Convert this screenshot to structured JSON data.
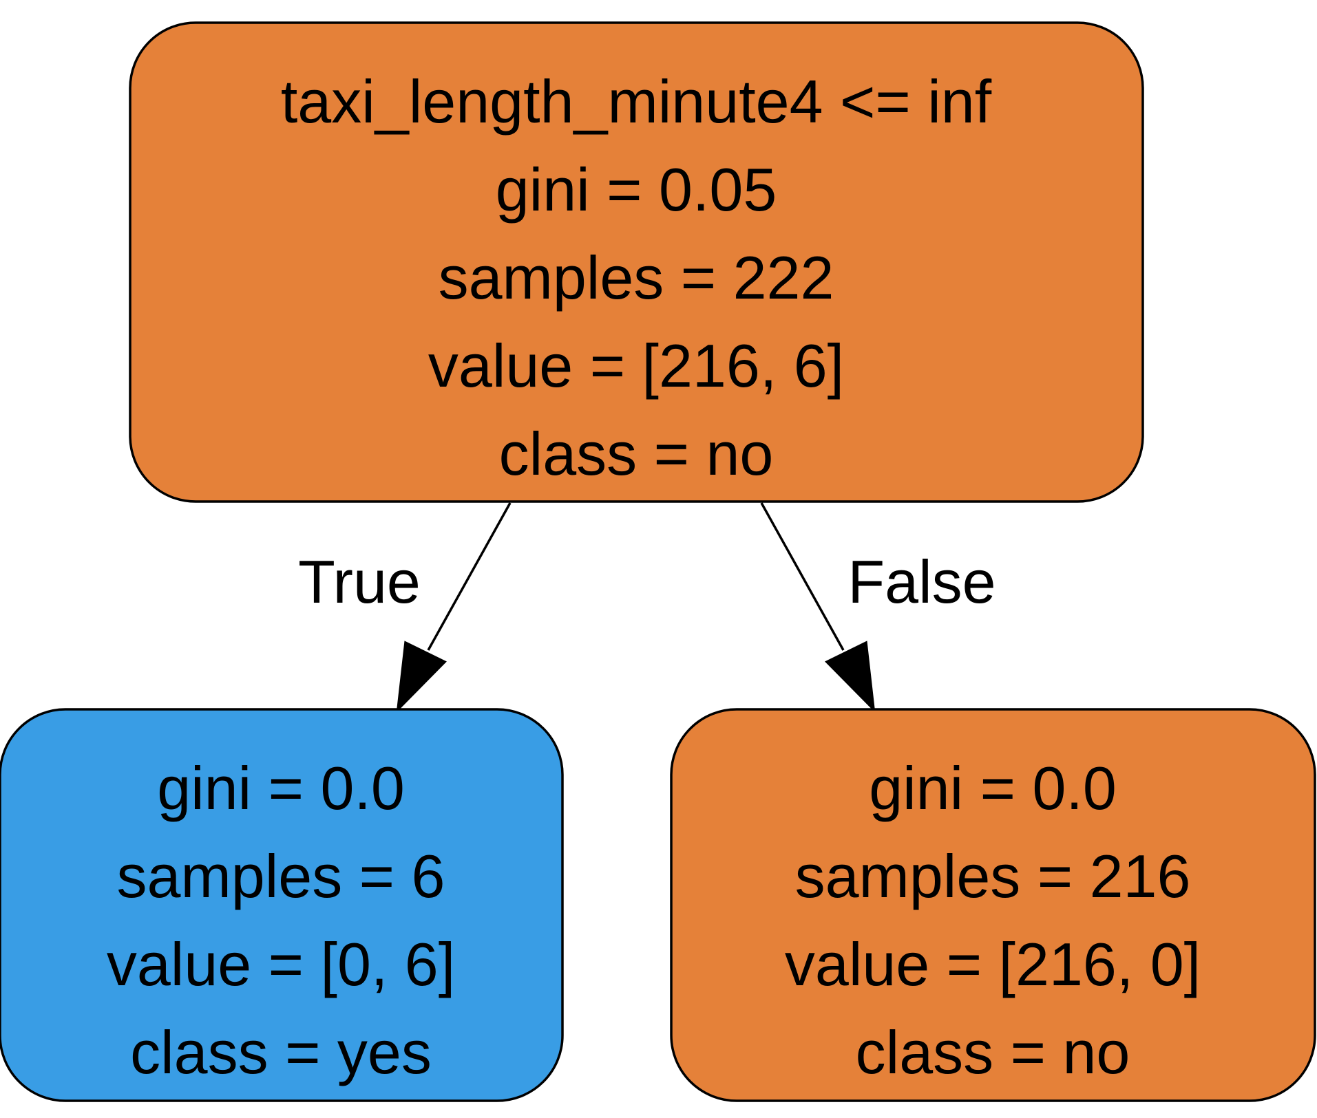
{
  "tree": {
    "root": {
      "fill": "#e58139",
      "lines": [
        "taxi_length_minute4 <= inf",
        "gini = 0.05",
        "samples = 222",
        "value = [216, 6]",
        "class = no"
      ]
    },
    "left": {
      "fill": "#399de5",
      "lines": [
        "gini = 0.0",
        "samples = 6",
        "value = [0, 6]",
        "class = yes"
      ]
    },
    "right": {
      "fill": "#e58139",
      "lines": [
        "gini = 0.0",
        "samples = 216",
        "value = [216, 0]",
        "class = no"
      ]
    },
    "edges": {
      "true_label": "True",
      "false_label": "False"
    }
  }
}
